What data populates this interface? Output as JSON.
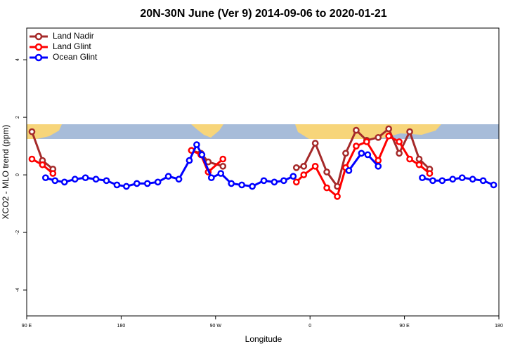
{
  "chart_data": {
    "type": "line",
    "title": "20N-30N June (Ver 9)   2014-09-06 to 2020-01-21",
    "x_label": "Longitude",
    "y_label": "XCO2 - MLO trend (ppm)",
    "xlim": [
      90,
      540
    ],
    "xticks": [
      {
        "value": 90,
        "label": "90 E"
      },
      {
        "value": 180,
        "label": "180"
      },
      {
        "value": 270,
        "label": "90 W"
      },
      {
        "value": 360,
        "label": "0"
      },
      {
        "value": 450,
        "label": "90 E"
      },
      {
        "value": 540,
        "label": "180"
      }
    ],
    "ylim": [
      -4.9,
      5.1
    ],
    "yticks": [
      -4,
      -2,
      0,
      2,
      4
    ],
    "legend": "top-left",
    "series": [
      {
        "name": "Land Nadir",
        "color": "#a52a2a",
        "x": [
          95,
          105,
          115,
          null,
          247,
          256,
          263,
          277,
          null,
          347,
          354,
          365,
          376,
          386,
          394,
          404,
          414,
          425,
          435,
          445,
          455,
          464,
          474
        ],
        "values": [
          1.5,
          0.5,
          0.2,
          null,
          0.85,
          0.75,
          0.45,
          0.3,
          null,
          0.25,
          0.3,
          1.1,
          0.1,
          -0.4,
          0.75,
          1.55,
          1.2,
          1.3,
          1.6,
          0.75,
          1.5,
          0.55,
          0.2
        ]
      },
      {
        "name": "Land Glint",
        "color": "#ff0000",
        "x": [
          95,
          105,
          115,
          null,
          247,
          256,
          263,
          277,
          null,
          347,
          354,
          365,
          376,
          386,
          394,
          404,
          414,
          425,
          435,
          445,
          455,
          464,
          474
        ],
        "values": [
          0.55,
          0.35,
          0.05,
          null,
          0.85,
          0.7,
          0.1,
          0.55,
          null,
          -0.25,
          0,
          0.3,
          -0.45,
          -0.75,
          0.25,
          1.0,
          1.15,
          0.5,
          1.35,
          1.15,
          0.55,
          0.35,
          0.05
        ]
      },
      {
        "name": "Ocean Glint",
        "color": "#0000ff",
        "x": [
          108,
          117,
          126,
          136,
          146,
          156,
          166,
          176,
          185,
          195,
          205,
          215,
          225,
          235,
          245,
          252,
          257,
          266,
          275,
          285,
          295,
          305,
          316,
          326,
          335,
          344,
          null,
          397,
          409,
          415,
          425,
          null,
          467,
          477,
          486,
          496,
          505,
          515,
          525,
          535
        ],
        "values": [
          -0.1,
          -0.2,
          -0.25,
          -0.15,
          -0.1,
          -0.15,
          -0.2,
          -0.35,
          -0.4,
          -0.3,
          -0.3,
          -0.25,
          -0.05,
          -0.15,
          0.5,
          1.05,
          0.7,
          -0.1,
          0.05,
          -0.3,
          -0.35,
          -0.4,
          -0.2,
          -0.25,
          -0.2,
          -0.05,
          null,
          0.15,
          0.75,
          0.7,
          0.3,
          null,
          -0.1,
          -0.2,
          -0.2,
          -0.15,
          -0.1,
          -0.15,
          -0.2,
          -0.35
        ]
      }
    ]
  }
}
